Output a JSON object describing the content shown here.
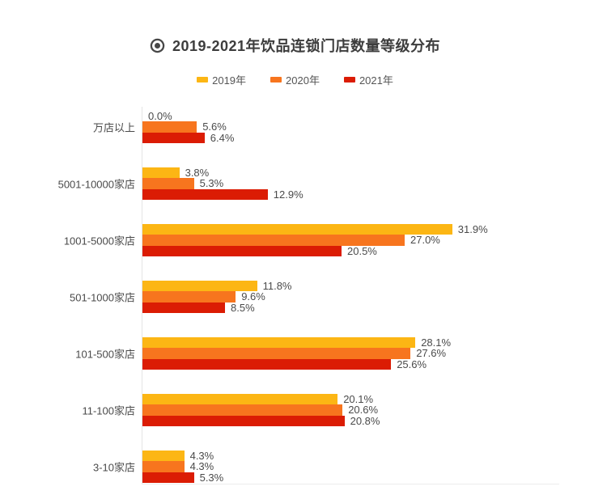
{
  "chart_data": {
    "type": "bar",
    "orientation": "horizontal",
    "title": "2019-2021年饮品连锁门店数量等级分布",
    "title_icon": "target-icon",
    "categories": [
      "万店以上",
      "5001-10000家店",
      "1001-5000家店",
      "501-1000家店",
      "101-500家店",
      "11-100家店",
      "3-10家店"
    ],
    "series": [
      {
        "name": "2019年",
        "color": "#FCB614",
        "values": [
          0.0,
          3.8,
          31.9,
          11.8,
          28.1,
          20.1,
          4.3
        ]
      },
      {
        "name": "2020年",
        "color": "#F7751E",
        "values": [
          5.6,
          5.3,
          27.0,
          9.6,
          27.6,
          20.6,
          4.3
        ]
      },
      {
        "name": "2021年",
        "color": "#DB1C04",
        "values": [
          6.4,
          12.9,
          20.5,
          8.5,
          25.6,
          20.8,
          5.3
        ]
      }
    ],
    "value_suffix": "%",
    "value_decimals": 1,
    "xlim": [
      0,
      33
    ],
    "legend_position": "top",
    "grid": false,
    "data_labels": true,
    "colors": {
      "title_text": "#3d3d3d",
      "label_text": "#4a4a4a",
      "legend_text": "#555555",
      "axis_line": "#e4e4e4",
      "background": "#ffffff"
    }
  }
}
